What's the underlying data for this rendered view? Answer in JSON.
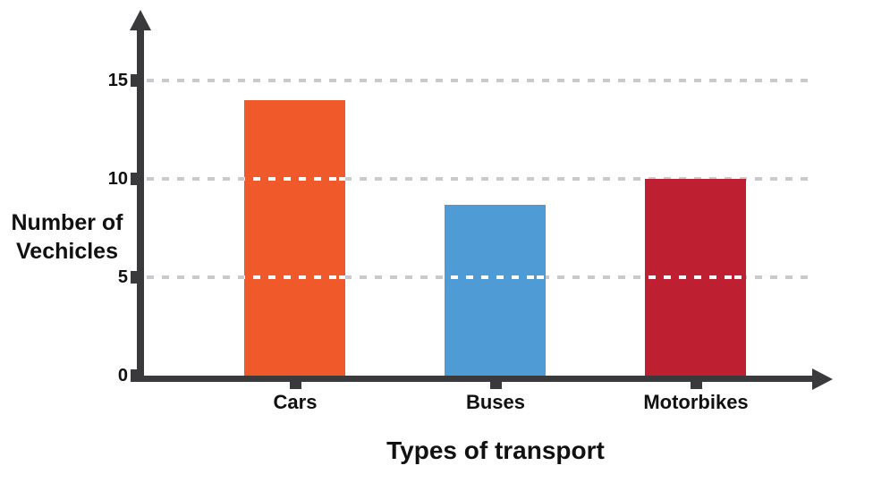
{
  "chart_data": {
    "type": "bar",
    "title": "",
    "categories": [
      "Cars",
      "Buses",
      "Motorbikes"
    ],
    "values": [
      14,
      8.7,
      10
    ],
    "bar_colors": [
      "#f05a2b",
      "#4f9bd5",
      "#bf2031"
    ],
    "xlabel": "Types of transport",
    "ylabel": "Number of Vechicles",
    "ylabel_lines": [
      "Number of",
      "Vechicles"
    ],
    "yticks": [
      0,
      5,
      10,
      15
    ],
    "ytick_labels": [
      "0",
      "5",
      "10",
      "15"
    ],
    "ylim": [
      0,
      17.5
    ],
    "grid": "horizontal-dashed",
    "legend_position": "none"
  },
  "colors": {
    "background": "#ffffff",
    "axis": "#3a3a3c",
    "gridline": "#c9c9ce",
    "gridline_over_bar": "#ffffff",
    "text": "#111111"
  }
}
